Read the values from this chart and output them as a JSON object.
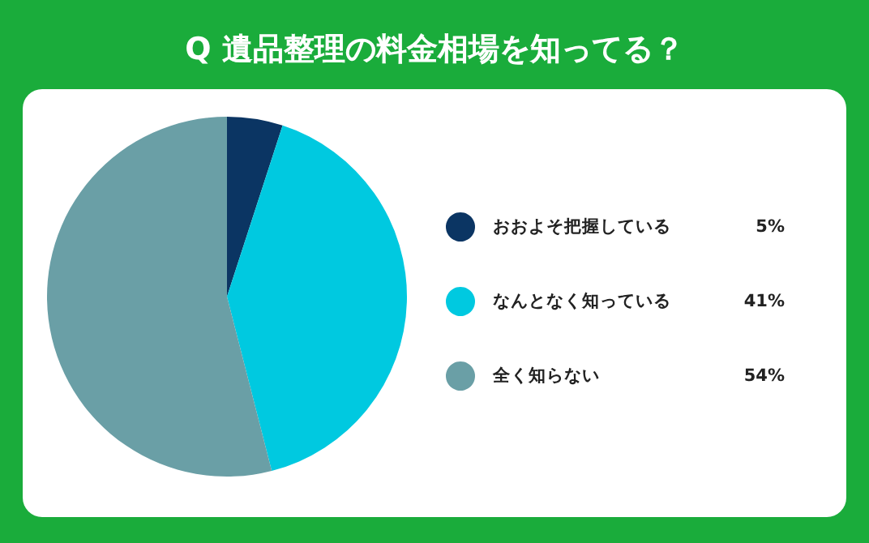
{
  "chart_data": {
    "type": "pie",
    "title": "Q 遺品整理の料金相場を知ってる？",
    "categories": [
      "おおよそ把握している",
      "なんとなく知っている",
      "全く知らない"
    ],
    "values": [
      5,
      41,
      54
    ],
    "value_labels": [
      "5%",
      "41%",
      "54%"
    ],
    "colors": [
      "#0b3563",
      "#00c9e0",
      "#6a9fa6"
    ],
    "legend": "right"
  }
}
